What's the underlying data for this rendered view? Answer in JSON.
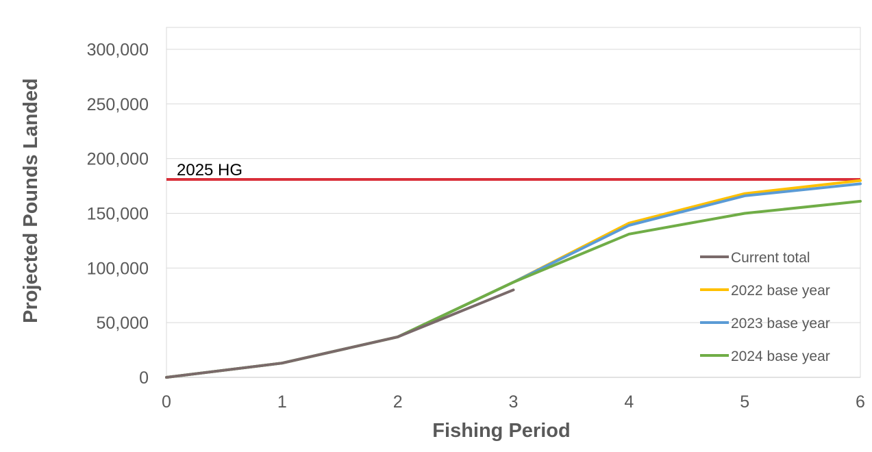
{
  "chart_data": {
    "type": "line",
    "title": "",
    "xlabel": "Fishing Period",
    "ylabel": "Projected Pounds Landed",
    "xlim": [
      0,
      6
    ],
    "ylim": [
      0,
      320000
    ],
    "x_ticks": [
      "0",
      "1",
      "2",
      "3",
      "4",
      "5",
      "6"
    ],
    "y_ticks": [
      "0",
      "50,000",
      "100,000",
      "150,000",
      "200,000",
      "250,000",
      "300,000"
    ],
    "y_tick_values": [
      0,
      50000,
      100000,
      150000,
      200000,
      250000,
      300000
    ],
    "grid": true,
    "legend_position": "right",
    "reference_line": {
      "label": "2025 HG",
      "value": 181000,
      "color": "#d9303a"
    },
    "series": [
      {
        "name": "Current total",
        "color": "#7a6a6a",
        "x": [
          0,
          1,
          2,
          3
        ],
        "values": [
          0,
          13000,
          37000,
          80000
        ]
      },
      {
        "name": "2022 base year",
        "color": "#ffc000",
        "x": [
          0,
          1,
          2,
          3,
          4,
          5,
          6
        ],
        "values": [
          0,
          13000,
          37000,
          87000,
          141000,
          168000,
          180000
        ]
      },
      {
        "name": "2023 base year",
        "color": "#5b9bd5",
        "x": [
          0,
          1,
          2,
          3,
          4,
          5,
          6
        ],
        "values": [
          0,
          13000,
          37000,
          87000,
          139000,
          166000,
          177000
        ]
      },
      {
        "name": "2024 base year",
        "color": "#70ad47",
        "x": [
          0,
          1,
          2,
          3,
          4,
          5,
          6
        ],
        "values": [
          0,
          13000,
          37000,
          87000,
          131000,
          150000,
          161000
        ]
      }
    ]
  }
}
